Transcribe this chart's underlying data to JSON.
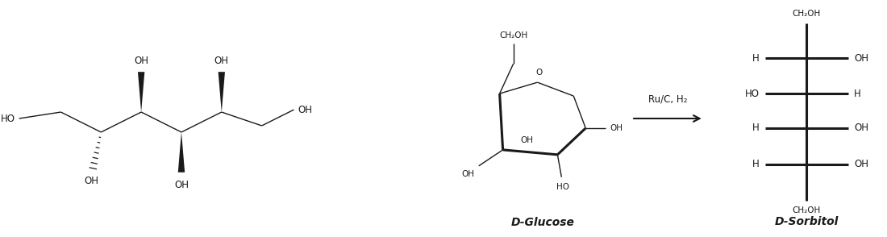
{
  "bg_color": "#ffffff",
  "text_color": "#1a1a1a",
  "line_color": "#1a1a1a",
  "font_size_label": 8.5,
  "font_size_small": 7.5,
  "font_size_caption": 10,
  "caption_glucose": "D-Glucose",
  "caption_sorbitol": "D-Sorbitol",
  "arrow_label": "Ru/C, H₂"
}
